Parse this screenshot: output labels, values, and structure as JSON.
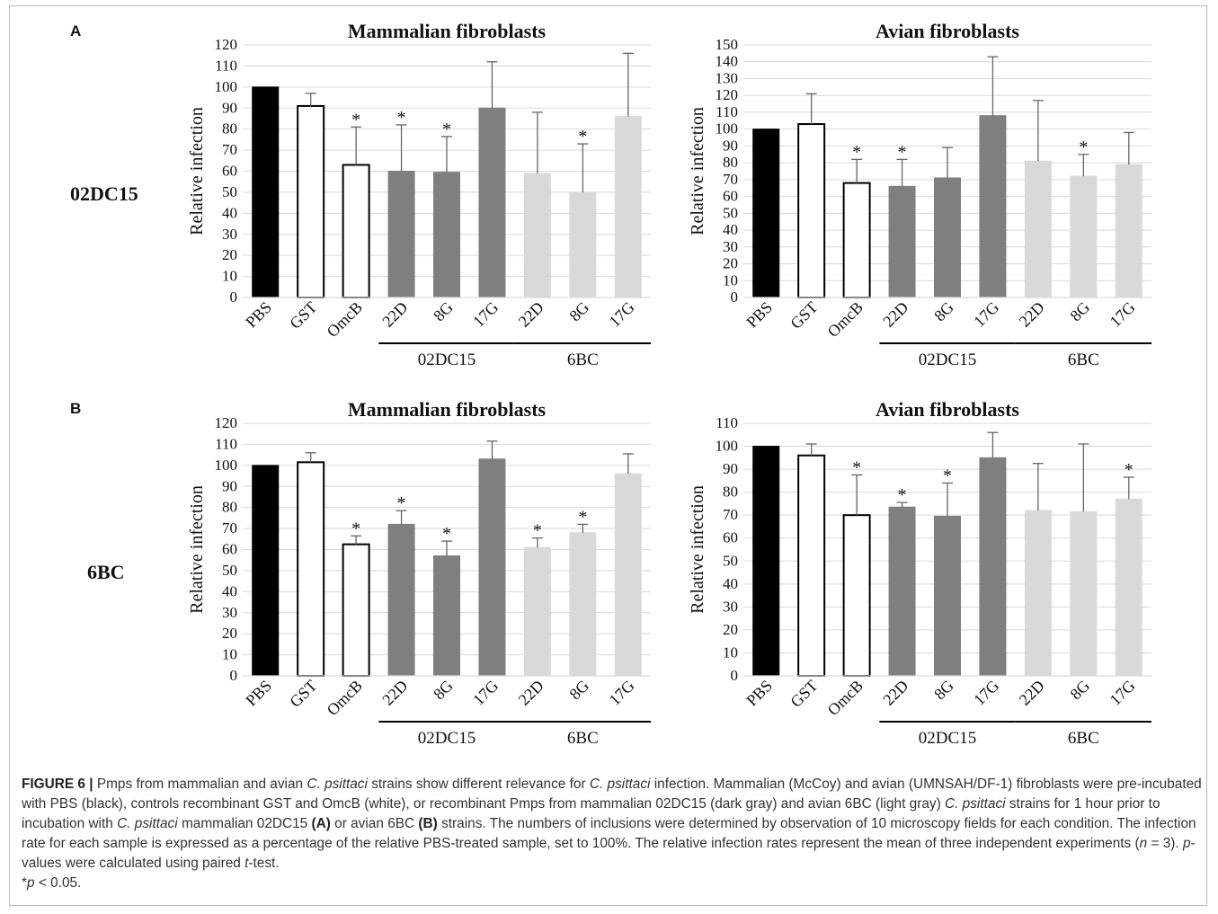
{
  "panel_letters": [
    "A",
    "B"
  ],
  "row_labels": [
    "02DC15",
    "6BC"
  ],
  "chart_data": [
    {
      "type": "bar",
      "panel": "A",
      "title": "Mammalian fibroblasts",
      "ylabel": "Relative infection",
      "ylim": [
        0,
        120
      ],
      "ytick_step": 10,
      "categories": [
        "PBS",
        "GST",
        "OmcB",
        "22D",
        "8G",
        "17G",
        "22D",
        "8G",
        "17G"
      ],
      "values": [
        100,
        91,
        63,
        60,
        59.5,
        90,
        59,
        50,
        86
      ],
      "errors": [
        0,
        6,
        18,
        22,
        17,
        22,
        29,
        23,
        30
      ],
      "significant": [
        false,
        false,
        true,
        true,
        true,
        false,
        false,
        true,
        false
      ],
      "fill": [
        "#000000",
        "#ffffff",
        "#ffffff",
        "#7f7f7f",
        "#7f7f7f",
        "#7f7f7f",
        "#d9d9d9",
        "#d9d9d9",
        "#d9d9d9"
      ],
      "groups": [
        {
          "label": "02DC15",
          "from": 3,
          "to": 5
        },
        {
          "label": "6BC",
          "from": 6,
          "to": 8
        }
      ]
    },
    {
      "type": "bar",
      "panel": "A",
      "title": "Avian fibroblasts",
      "ylabel": "Relative infection",
      "ylim": [
        0,
        150
      ],
      "ytick_step": 10,
      "categories": [
        "PBS",
        "GST",
        "OmcB",
        "22D",
        "8G",
        "17G",
        "22D",
        "8G",
        "17G"
      ],
      "values": [
        100,
        103,
        68,
        66,
        71,
        108,
        81,
        72,
        79
      ],
      "errors": [
        0,
        18,
        14,
        16,
        18,
        35,
        36,
        13,
        19
      ],
      "significant": [
        false,
        false,
        true,
        true,
        false,
        false,
        false,
        true,
        false
      ],
      "fill": [
        "#000000",
        "#ffffff",
        "#ffffff",
        "#7f7f7f",
        "#7f7f7f",
        "#7f7f7f",
        "#d9d9d9",
        "#d9d9d9",
        "#d9d9d9"
      ],
      "groups": [
        {
          "label": "02DC15",
          "from": 3,
          "to": 5
        },
        {
          "label": "6BC",
          "from": 6,
          "to": 8
        }
      ]
    },
    {
      "type": "bar",
      "panel": "B",
      "title": "Mammalian fibroblasts",
      "ylabel": "Relative infection",
      "ylim": [
        0,
        120
      ],
      "ytick_step": 10,
      "categories": [
        "PBS",
        "GST",
        "OmcB",
        "22D",
        "8G",
        "17G",
        "22D",
        "8G",
        "17G"
      ],
      "values": [
        100,
        101.5,
        62.5,
        72,
        57,
        103,
        61,
        68,
        96
      ],
      "errors": [
        0,
        4.5,
        4,
        6.5,
        7,
        8.5,
        4.5,
        4,
        9.5
      ],
      "significant": [
        false,
        false,
        true,
        true,
        true,
        false,
        true,
        true,
        false
      ],
      "fill": [
        "#000000",
        "#ffffff",
        "#ffffff",
        "#7f7f7f",
        "#7f7f7f",
        "#7f7f7f",
        "#d9d9d9",
        "#d9d9d9",
        "#d9d9d9"
      ],
      "groups": [
        {
          "label": "02DC15",
          "from": 3,
          "to": 5
        },
        {
          "label": "6BC",
          "from": 6,
          "to": 8
        }
      ]
    },
    {
      "type": "bar",
      "panel": "B",
      "title": "Avian fibroblasts",
      "ylabel": "Relative infection",
      "ylim": [
        0,
        110
      ],
      "ytick_step": 10,
      "categories": [
        "PBS",
        "GST",
        "OmcB",
        "22D",
        "8G",
        "17G",
        "22D",
        "8G",
        "17G"
      ],
      "values": [
        100,
        96,
        70,
        73.5,
        69.5,
        95,
        72,
        71.5,
        77
      ],
      "errors": [
        0,
        5,
        17.5,
        2,
        14.5,
        11,
        20.5,
        29.5,
        9.5
      ],
      "significant": [
        false,
        false,
        true,
        true,
        true,
        false,
        false,
        false,
        true
      ],
      "fill": [
        "#000000",
        "#ffffff",
        "#ffffff",
        "#7f7f7f",
        "#7f7f7f",
        "#7f7f7f",
        "#d9d9d9",
        "#d9d9d9",
        "#d9d9d9"
      ],
      "groups": [
        {
          "label": "02DC15",
          "from": 3,
          "to": 5
        },
        {
          "label": "6BC",
          "from": 6,
          "to": 8
        }
      ]
    }
  ],
  "significance_marker": "*",
  "caption": {
    "figure_label": "FIGURE 6 |",
    "t1": " Pmps from mammalian and avian ",
    "i1": "C. psittaci",
    "t2": " strains show different relevance for ",
    "i2": "C. psittaci",
    "t3": " infection. Mammalian (McCoy) and avian (UMNSAH/DF-1) fibroblasts were pre-incubated with PBS (black), controls recombinant GST and OmcB (white), or recombinant Pmps from mammalian 02DC15 (dark gray) and avian 6BC (light gray) ",
    "i3": "C. psittaci",
    "t4": " strains for 1 hour prior to incubation with ",
    "i4": "C. psittaci",
    "t5": " mammalian 02DC15 ",
    "b1": "(A)",
    "t6": " or avian 6BC ",
    "b2": "(B)",
    "t7": " strains. The numbers of inclusions were determined by observation of 10 microscopy fields for each condition. The infection rate for each sample is expressed as a percentage of the relative PBS-treated sample, set to 100%. The relative infection rates represent the mean of three independent experiments (",
    "i5": "n",
    "t8": " = 3). ",
    "i6": "p",
    "t9": "-values were calculated using paired ",
    "i7": "t",
    "t10": "-test.",
    "footnote_star": "*",
    "i8": "p",
    "t11": " < 0.05."
  }
}
